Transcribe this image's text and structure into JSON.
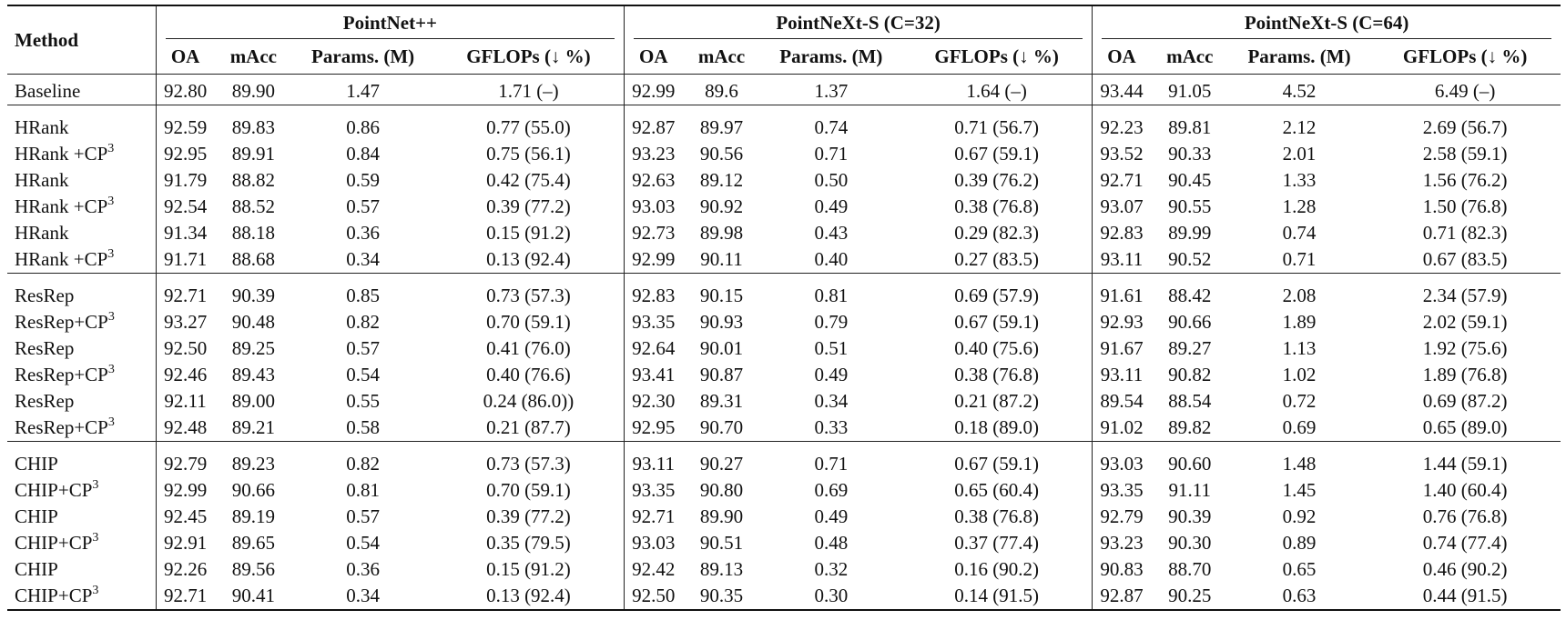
{
  "header": {
    "method": "Method",
    "groups": [
      "PointNet++",
      "PointNeXt-S (C=32)",
      "PointNeXt-S (C=64)"
    ],
    "subcols": [
      "OA",
      "mAcc",
      "Params. (M)",
      "GFLOPs (↓ %)"
    ]
  },
  "sections": [
    {
      "rows": [
        {
          "method": "Baseline",
          "sup": "",
          "cells": [
            "92.80",
            "89.90",
            "1.47",
            "1.71 (–)",
            "92.99",
            "89.6",
            "1.37",
            "1.64 (–)",
            "93.44",
            "91.05",
            "4.52",
            "6.49 (–)"
          ]
        }
      ]
    },
    {
      "rows": [
        {
          "method": "HRank",
          "sup": "",
          "cells": [
            "92.59",
            "89.83",
            "0.86",
            "0.77 (55.0)",
            "92.87",
            "89.97",
            "0.74",
            "0.71 (56.7)",
            "92.23",
            "89.81",
            "2.12",
            "2.69 (56.7)"
          ]
        },
        {
          "method": "HRank +CP",
          "sup": "3",
          "cells": [
            "92.95",
            "89.91",
            "0.84",
            "0.75 (56.1)",
            "93.23",
            "90.56",
            "0.71",
            "0.67 (59.1)",
            "93.52",
            "90.33",
            "2.01",
            "2.58 (59.1)"
          ]
        },
        {
          "method": "HRank",
          "sup": "",
          "cells": [
            "91.79",
            "88.82",
            "0.59",
            "0.42 (75.4)",
            "92.63",
            "89.12",
            "0.50",
            "0.39 (76.2)",
            "92.71",
            "90.45",
            "1.33",
            "1.56 (76.2)"
          ]
        },
        {
          "method": "HRank +CP",
          "sup": "3",
          "cells": [
            "92.54",
            "88.52",
            "0.57",
            "0.39 (77.2)",
            "93.03",
            "90.92",
            "0.49",
            "0.38 (76.8)",
            "93.07",
            "90.55",
            "1.28",
            "1.50 (76.8)"
          ]
        },
        {
          "method": "HRank",
          "sup": "",
          "cells": [
            "91.34",
            "88.18",
            "0.36",
            "0.15 (91.2)",
            "92.73",
            "89.98",
            "0.43",
            "0.29 (82.3)",
            "92.83",
            "89.99",
            "0.74",
            "0.71 (82.3)"
          ]
        },
        {
          "method": "HRank +CP",
          "sup": "3",
          "cells": [
            "91.71",
            "88.68",
            "0.34",
            "0.13 (92.4)",
            "92.99",
            "90.11",
            "0.40",
            "0.27 (83.5)",
            "93.11",
            "90.52",
            "0.71",
            "0.67 (83.5)"
          ]
        }
      ]
    },
    {
      "rows": [
        {
          "method": "ResRep",
          "sup": "",
          "cells": [
            "92.71",
            "90.39",
            "0.85",
            "0.73 (57.3)",
            "92.83",
            "90.15",
            "0.81",
            "0.69 (57.9)",
            "91.61",
            "88.42",
            "2.08",
            "2.34 (57.9)"
          ]
        },
        {
          "method": "ResRep+CP",
          "sup": "3",
          "cells": [
            "93.27",
            "90.48",
            "0.82",
            "0.70 (59.1)",
            "93.35",
            "90.93",
            "0.79",
            "0.67 (59.1)",
            "92.93",
            "90.66",
            "1.89",
            "2.02 (59.1)"
          ]
        },
        {
          "method": "ResRep",
          "sup": "",
          "cells": [
            "92.50",
            "89.25",
            "0.57",
            "0.41 (76.0)",
            "92.64",
            "90.01",
            "0.51",
            "0.40 (75.6)",
            "91.67",
            "89.27",
            "1.13",
            "1.92 (75.6)"
          ]
        },
        {
          "method": "ResRep+CP",
          "sup": "3",
          "cells": [
            "92.46",
            "89.43",
            "0.54",
            "0.40 (76.6)",
            "93.41",
            "90.87",
            "0.49",
            "0.38 (76.8)",
            "93.11",
            "90.82",
            "1.02",
            "1.89 (76.8)"
          ]
        },
        {
          "method": "ResRep",
          "sup": "",
          "cells": [
            "92.11",
            "89.00",
            "0.55",
            "0.24 (86.0))",
            "92.30",
            "89.31",
            "0.34",
            "0.21 (87.2)",
            "89.54",
            "88.54",
            "0.72",
            "0.69 (87.2)"
          ]
        },
        {
          "method": "ResRep+CP",
          "sup": "3",
          "cells": [
            "92.48",
            "89.21",
            "0.58",
            "0.21 (87.7)",
            "92.95",
            "90.70",
            "0.33",
            "0.18 (89.0)",
            "91.02",
            "89.82",
            "0.69",
            "0.65 (89.0)"
          ]
        }
      ]
    },
    {
      "rows": [
        {
          "method": "CHIP",
          "sup": "",
          "cells": [
            "92.79",
            "89.23",
            "0.82",
            "0.73 (57.3)",
            "93.11",
            "90.27",
            "0.71",
            "0.67 (59.1)",
            "93.03",
            "90.60",
            "1.48",
            "1.44 (59.1)"
          ]
        },
        {
          "method": "CHIP+CP",
          "sup": "3",
          "cells": [
            "92.99",
            "90.66",
            "0.81",
            "0.70 (59.1)",
            "93.35",
            "90.80",
            "0.69",
            "0.65 (60.4)",
            "93.35",
            "91.11",
            "1.45",
            "1.40 (60.4)"
          ]
        },
        {
          "method": "CHIP",
          "sup": "",
          "cells": [
            "92.45",
            "89.19",
            "0.57",
            "0.39 (77.2)",
            "92.71",
            "89.90",
            "0.49",
            "0.38 (76.8)",
            "92.79",
            "90.39",
            "0.92",
            "0.76 (76.8)"
          ]
        },
        {
          "method": "CHIP+CP",
          "sup": "3",
          "cells": [
            "92.91",
            "89.65",
            "0.54",
            "0.35 (79.5)",
            "93.03",
            "90.51",
            "0.48",
            "0.37 (77.4)",
            "93.23",
            "90.30",
            "0.89",
            "0.74 (77.4)"
          ]
        },
        {
          "method": "CHIP",
          "sup": "",
          "cells": [
            "92.26",
            "89.56",
            "0.36",
            "0.15 (91.2)",
            "92.42",
            "89.13",
            "0.32",
            "0.16 (90.2)",
            "90.83",
            "88.70",
            "0.65",
            "0.46 (90.2)"
          ]
        },
        {
          "method": "CHIP+CP",
          "sup": "3",
          "cells": [
            "92.71",
            "90.41",
            "0.34",
            "0.13 (92.4)",
            "92.50",
            "90.35",
            "0.30",
            "0.14 (91.5)",
            "92.87",
            "90.25",
            "0.63",
            "0.44 (91.5)"
          ]
        }
      ]
    }
  ]
}
